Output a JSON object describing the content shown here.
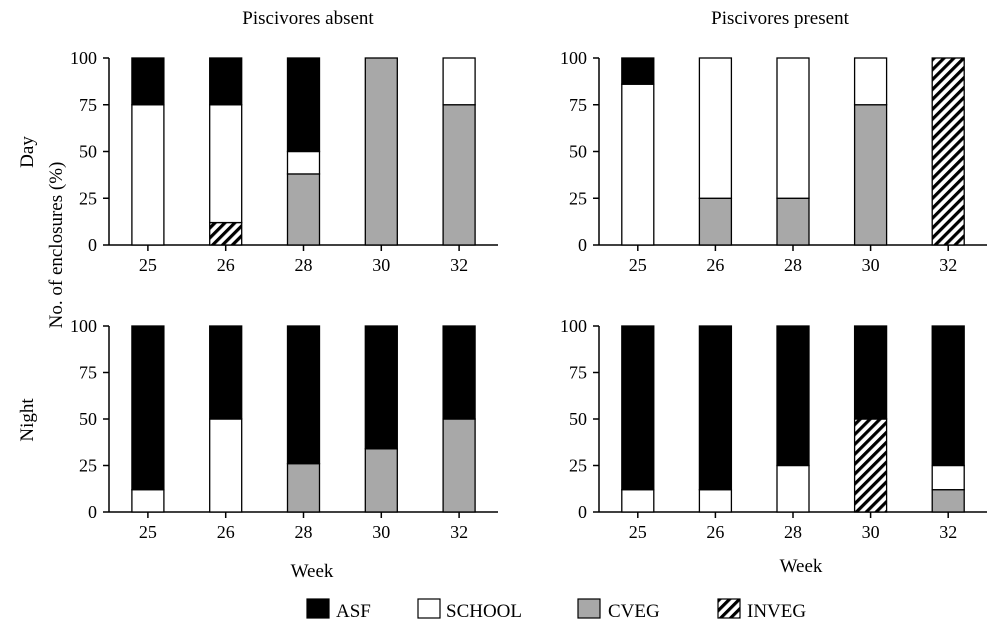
{
  "figure": {
    "column_titles": [
      "Piscivores absent",
      "Piscivores present"
    ],
    "row_labels": [
      "Day",
      "Night"
    ],
    "y_axis_label": "No. of enclosures (%)",
    "x_axis_label": "Week"
  },
  "legend": [
    {
      "key": "ASF",
      "label": "ASF",
      "color": "#000000"
    },
    {
      "key": "SCHOOL",
      "label": "SCHOOL",
      "color": "#ffffff"
    },
    {
      "key": "CVEG",
      "label": "CVEG",
      "color": "#a8a8a8"
    },
    {
      "key": "INVEG",
      "label": "INVEG",
      "pattern": "diagonal-hatch"
    }
  ],
  "chart_data": [
    {
      "type": "bar",
      "stacked": true,
      "row": "Day",
      "column": "Piscivores absent",
      "categories": [
        "25",
        "26",
        "28",
        "30",
        "32"
      ],
      "ylim": [
        0,
        100
      ],
      "yticks": [
        0,
        25,
        50,
        75,
        100
      ],
      "stack_order": [
        "CVEG",
        "INVEG",
        "SCHOOL",
        "ASF"
      ],
      "series": [
        {
          "name": "CVEG",
          "values": [
            0,
            0,
            38,
            100,
            75
          ]
        },
        {
          "name": "INVEG",
          "values": [
            0,
            12,
            0,
            0,
            0
          ]
        },
        {
          "name": "SCHOOL",
          "values": [
            75,
            63,
            12,
            0,
            25
          ]
        },
        {
          "name": "ASF",
          "values": [
            25,
            25,
            50,
            0,
            0
          ]
        }
      ]
    },
    {
      "type": "bar",
      "stacked": true,
      "row": "Day",
      "column": "Piscivores present",
      "categories": [
        "25",
        "26",
        "28",
        "30",
        "32"
      ],
      "ylim": [
        0,
        100
      ],
      "yticks": [
        0,
        25,
        50,
        75,
        100
      ],
      "stack_order": [
        "CVEG",
        "INVEG",
        "SCHOOL",
        "ASF"
      ],
      "series": [
        {
          "name": "CVEG",
          "values": [
            0,
            25,
            25,
            75,
            0
          ]
        },
        {
          "name": "INVEG",
          "values": [
            0,
            0,
            0,
            0,
            100
          ]
        },
        {
          "name": "SCHOOL",
          "values": [
            86,
            75,
            75,
            25,
            0
          ]
        },
        {
          "name": "ASF",
          "values": [
            14,
            0,
            0,
            0,
            0
          ]
        }
      ]
    },
    {
      "type": "bar",
      "stacked": true,
      "row": "Night",
      "column": "Piscivores absent",
      "categories": [
        "25",
        "26",
        "28",
        "30",
        "32"
      ],
      "ylim": [
        0,
        100
      ],
      "yticks": [
        0,
        25,
        50,
        75,
        100
      ],
      "stack_order": [
        "CVEG",
        "INVEG",
        "SCHOOL",
        "ASF"
      ],
      "series": [
        {
          "name": "CVEG",
          "values": [
            0,
            0,
            26,
            34,
            50
          ]
        },
        {
          "name": "INVEG",
          "values": [
            0,
            0,
            0,
            0,
            0
          ]
        },
        {
          "name": "SCHOOL",
          "values": [
            12,
            50,
            0,
            0,
            0
          ]
        },
        {
          "name": "ASF",
          "values": [
            88,
            50,
            74,
            66,
            50
          ]
        }
      ]
    },
    {
      "type": "bar",
      "stacked": true,
      "row": "Night",
      "column": "Piscivores present",
      "categories": [
        "25",
        "26",
        "28",
        "30",
        "32"
      ],
      "ylim": [
        0,
        100
      ],
      "yticks": [
        0,
        25,
        50,
        75,
        100
      ],
      "stack_order": [
        "CVEG",
        "INVEG",
        "SCHOOL",
        "ASF"
      ],
      "series": [
        {
          "name": "CVEG",
          "values": [
            0,
            0,
            0,
            0,
            12
          ]
        },
        {
          "name": "INVEG",
          "values": [
            0,
            0,
            0,
            50,
            0
          ]
        },
        {
          "name": "SCHOOL",
          "values": [
            12,
            12,
            25,
            0,
            13
          ]
        },
        {
          "name": "ASF",
          "values": [
            88,
            88,
            75,
            50,
            75
          ]
        }
      ]
    }
  ]
}
